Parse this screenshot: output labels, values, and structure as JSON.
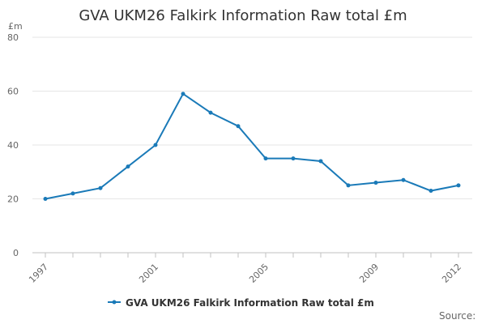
{
  "chart_data": {
    "type": "line",
    "title": "GVA UKM26 Falkirk Information Raw total £m",
    "ylabel": "£m",
    "xlabel": "",
    "x": [
      1997,
      1998,
      1999,
      2000,
      2001,
      2002,
      2003,
      2004,
      2005,
      2006,
      2007,
      2008,
      2009,
      2010,
      2011,
      2012
    ],
    "x_tick_labels": [
      "1997",
      "2001",
      "2005",
      "2009",
      "2012"
    ],
    "y_tick_labels": [
      "0",
      "20",
      "40",
      "60",
      "80"
    ],
    "xlim": [
      1997,
      2012
    ],
    "ylim": [
      0,
      80
    ],
    "grid": true,
    "legend_position": "bottom",
    "series": [
      {
        "name": "GVA UKM26 Falkirk Information Raw total £m",
        "color": "#1a7ab8",
        "values": [
          20,
          22,
          24,
          32,
          40,
          59,
          52,
          47,
          35,
          35,
          34,
          25,
          26,
          27,
          23,
          25
        ]
      }
    ],
    "source_label": "Source:"
  }
}
